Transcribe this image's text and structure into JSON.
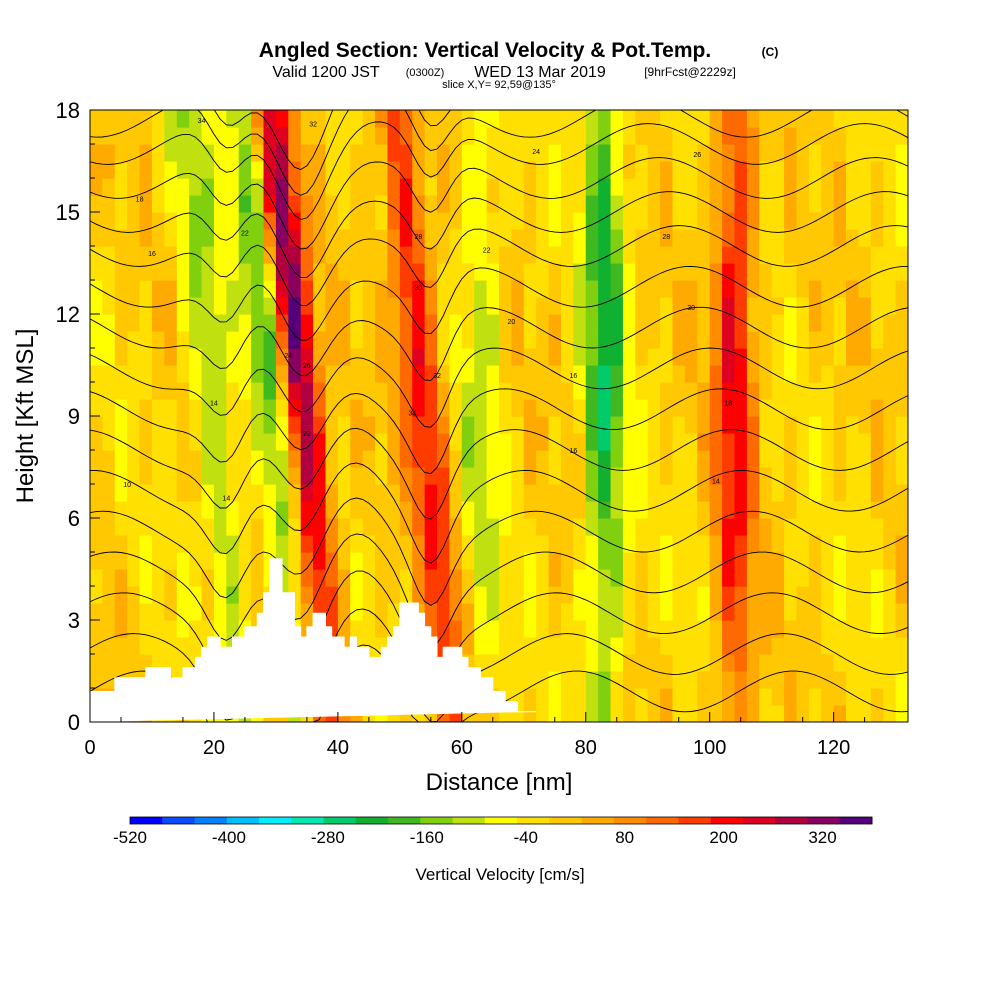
{
  "title": {
    "main": "Angled Section: Vertical Velocity & Pot.Temp.",
    "main_suffix": "(C)",
    "line2_a": "Valid 1200 JST",
    "line2_b": "(0300Z)",
    "line2_c": "WED 13 Mar 2019",
    "line2_d": "[9hrFcst@2229z]",
    "line3": "slice X,Y= 92,59@135°"
  },
  "chart_data": {
    "type": "heatmap",
    "xlabel": "Distance [nm]",
    "ylabel": "Height [Kft MSL]",
    "xlim": [
      0,
      132
    ],
    "ylim": [
      0,
      18
    ],
    "x_ticks": [
      "0",
      "20",
      "40",
      "60",
      "80",
      "100",
      "120"
    ],
    "y_ticks": [
      "0",
      "3",
      "6",
      "9",
      "12",
      "15",
      "18"
    ],
    "colorbar": {
      "label": "Vertical Velocity [cm/s]",
      "tick_labels": [
        "-520",
        "-400",
        "-280",
        "-160",
        "-40",
        "80",
        "200",
        "320"
      ],
      "tick_values": [
        -520,
        -400,
        -280,
        -160,
        -40,
        80,
        200,
        320
      ],
      "min": -520,
      "max": 380,
      "colors": [
        "#0000ff",
        "#0a4bff",
        "#0080ff",
        "#00bfff",
        "#00eeff",
        "#00e8b4",
        "#00cc6b",
        "#10b030",
        "#40b820",
        "#80d010",
        "#c0e010",
        "#ffff00",
        "#ffe000",
        "#ffc800",
        "#ffaa00",
        "#ff8c00",
        "#ff6a00",
        "#ff3c00",
        "#ff0000",
        "#dd0020",
        "#b00040",
        "#880060",
        "#55007a"
      ]
    },
    "velocity_features": [
      {
        "x": 0,
        "amplitude": 0,
        "note": "background"
      },
      {
        "x": 34,
        "amplitude": 380
      },
      {
        "x": 54,
        "amplitude": 240
      },
      {
        "x": 104,
        "amplitude": 230
      },
      {
        "x": 30,
        "amplitude": -200
      },
      {
        "x": 83,
        "amplitude": -220
      },
      {
        "x": 20,
        "amplitude": -140
      },
      {
        "x": 63,
        "amplitude": -100
      }
    ],
    "terrain_profile": {
      "x": [
        0,
        4,
        4,
        9,
        9,
        13,
        13,
        15,
        15,
        17,
        17,
        18,
        18,
        19,
        19,
        21,
        21,
        23,
        23,
        25,
        25,
        27,
        27,
        28,
        28,
        29,
        29,
        31,
        31,
        33,
        33,
        34,
        34,
        35,
        35,
        36,
        36,
        38,
        38,
        39,
        39,
        41,
        41,
        42,
        42,
        43,
        43,
        45,
        45,
        47,
        47,
        48,
        48,
        49,
        49,
        50,
        50,
        53,
        53,
        54,
        54,
        55,
        55,
        56,
        56,
        57,
        57,
        60,
        60,
        61,
        61,
        63,
        63,
        65,
        65,
        67,
        67,
        69,
        69,
        71,
        71,
        72,
        72,
        132
      ],
      "y": [
        0.9,
        0.9,
        1.3,
        1.3,
        1.6,
        1.6,
        1.3,
        1.3,
        1.6,
        1.6,
        1.9,
        1.9,
        2.2,
        2.2,
        2.5,
        2.5,
        2.2,
        2.2,
        2.5,
        2.5,
        2.8,
        2.8,
        3.2,
        3.2,
        3.8,
        3.8,
        4.8,
        4.8,
        3.8,
        3.8,
        2.8,
        2.8,
        2.5,
        2.5,
        2.8,
        2.8,
        3.2,
        3.2,
        2.8,
        2.8,
        2.5,
        2.5,
        2.2,
        2.2,
        2.5,
        2.5,
        2.2,
        2.2,
        1.9,
        1.9,
        2.2,
        2.2,
        2.5,
        2.5,
        2.8,
        2.8,
        3.5,
        3.5,
        3.2,
        3.2,
        2.8,
        2.8,
        2.5,
        2.5,
        1.9,
        1.9,
        2.2,
        2.2,
        1.9,
        1.9,
        1.6,
        1.6,
        1.3,
        1.3,
        0.9,
        0.9,
        0.6,
        0.6,
        0.3,
        0.3,
        0.3,
        0.3,
        0.3
      ]
    },
    "theta_contours": {
      "levels": [
        2,
        4,
        6,
        8,
        10,
        12,
        14,
        16,
        18,
        20,
        22,
        24,
        26,
        28,
        30,
        32,
        34
      ],
      "base_heights": [
        0.9,
        2.0,
        3.2,
        4.4,
        5.6,
        6.8,
        8.0,
        9.2,
        10.4,
        11.6,
        12.8,
        14.0,
        15.0,
        16.0,
        17.0,
        17.8,
        18.6
      ],
      "shown_labels": [
        "10",
        "14",
        "16",
        "18",
        "22",
        "24",
        "26",
        "28",
        "30",
        "32",
        "34",
        "14",
        "16",
        "18",
        "20",
        "22"
      ]
    },
    "contour_label_positions": [
      {
        "text": "10",
        "x": 6,
        "y": 7.0
      },
      {
        "text": "14",
        "x": 20,
        "y": 9.4
      },
      {
        "text": "14",
        "x": 22,
        "y": 6.6
      },
      {
        "text": "16",
        "x": 10,
        "y": 13.8
      },
      {
        "text": "18",
        "x": 8,
        "y": 15.4
      },
      {
        "text": "22",
        "x": 25,
        "y": 14.4
      },
      {
        "text": "24",
        "x": 32,
        "y": 10.8
      },
      {
        "text": "26",
        "x": 35,
        "y": 10.5
      },
      {
        "text": "22",
        "x": 35,
        "y": 8.5
      },
      {
        "text": "28",
        "x": 53,
        "y": 14.3
      },
      {
        "text": "30",
        "x": 53,
        "y": 12.8
      },
      {
        "text": "32",
        "x": 56,
        "y": 10.2
      },
      {
        "text": "34",
        "x": 52,
        "y": 9.1
      },
      {
        "text": "18",
        "x": 103,
        "y": 9.4
      },
      {
        "text": "14",
        "x": 101,
        "y": 7.1
      },
      {
        "text": "16",
        "x": 78,
        "y": 8.0
      },
      {
        "text": "16",
        "x": 78,
        "y": 10.2
      },
      {
        "text": "20",
        "x": 68,
        "y": 11.8
      },
      {
        "text": "22",
        "x": 64,
        "y": 13.9
      },
      {
        "text": "24",
        "x": 72,
        "y": 16.8
      },
      {
        "text": "26",
        "x": 98,
        "y": 16.7
      },
      {
        "text": "28",
        "x": 93,
        "y": 14.3
      },
      {
        "text": "30",
        "x": 97,
        "y": 12.2
      },
      {
        "text": "32",
        "x": 36,
        "y": 17.6
      },
      {
        "text": "34",
        "x": 18,
        "y": 17.7
      }
    ]
  }
}
